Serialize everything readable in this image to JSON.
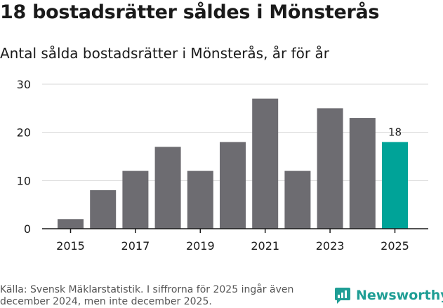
{
  "title": "18 bostadsrätter såldes i Mönsterås",
  "subtitle": "Antal sålda bostadsrätter i Mönsterås, år för år",
  "source": "Källa: Svensk Mäklarstatistik. I siffrorna för 2025 ingår även december 2024, men inte december 2025.",
  "logo_text": "Newsworthy",
  "colors": {
    "bar": "#6d6c71",
    "highlight": "#00a398",
    "grid": "#d9d9d9",
    "axis": "#1a1a1a",
    "brand": "#1f9e95"
  },
  "chart_data": {
    "type": "bar",
    "title": "18 bostadsrätter såldes i Mönsterås",
    "subtitle": "Antal sålda bostadsrätter i Mönsterås, år för år",
    "categories": [
      "2015",
      "2016",
      "2017",
      "2018",
      "2019",
      "2020",
      "2021",
      "2022",
      "2023",
      "2024",
      "2025"
    ],
    "values": [
      2,
      8,
      12,
      17,
      12,
      18,
      27,
      12,
      25,
      23,
      18
    ],
    "highlight_category": "2025",
    "data_labels": [
      {
        "category": "2025",
        "text": "18"
      }
    ],
    "xticks": [
      "2015",
      "2017",
      "2019",
      "2021",
      "2023",
      "2025"
    ],
    "yticks": [
      0,
      10,
      20,
      30
    ],
    "ylim": [
      0,
      30
    ],
    "xlabel": "",
    "ylabel": "",
    "grid": true
  }
}
